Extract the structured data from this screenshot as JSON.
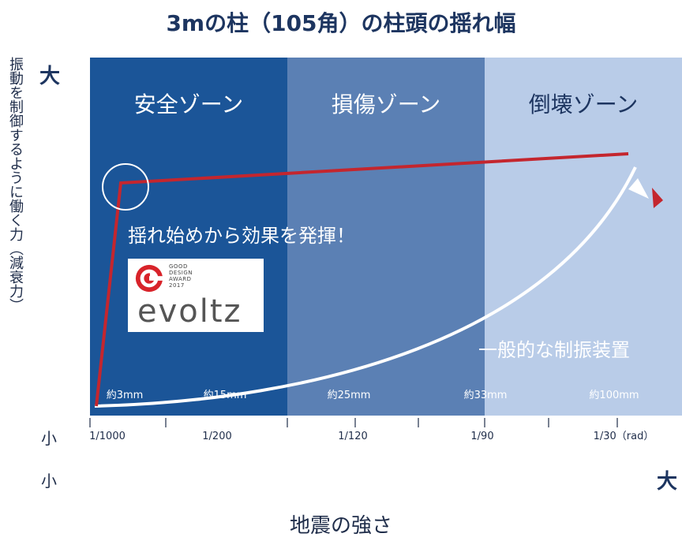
{
  "chart_data": {
    "type": "line",
    "title": "3mの柱（105角）の柱頭の揺れ幅",
    "ylabel": "振動を制御するように働く力（減衰力）",
    "xlabel": "地震の強さ",
    "y_axis_ends": {
      "top": "大",
      "bottom": "小"
    },
    "x_axis_ends": {
      "left": "小",
      "right": "大"
    },
    "zones": [
      {
        "label": "安全ゾーン",
        "color": "#1b5598"
      },
      {
        "label": "損傷ゾーン",
        "color": "#5b80b4"
      },
      {
        "label": "倒壊ゾーン",
        "color": "#b9cce8"
      }
    ],
    "x_ticks": [
      "1/1000",
      "1/200",
      "1/120",
      "1/90",
      "1/30（rad）"
    ],
    "displacement_labels": [
      "約3mm",
      "約15mm",
      "約25mm",
      "約33mm",
      "約100mm"
    ],
    "series": [
      {
        "name": "evoltz",
        "color": "#c4262e"
      },
      {
        "name": "一般的な制振装置",
        "color": "#ffffff"
      }
    ],
    "annotation": "揺れ始めから効果を発揮！"
  },
  "logo": {
    "lines": "GOOD\nDESIGN\nAWARD\n2017",
    "word": "evoltz"
  }
}
